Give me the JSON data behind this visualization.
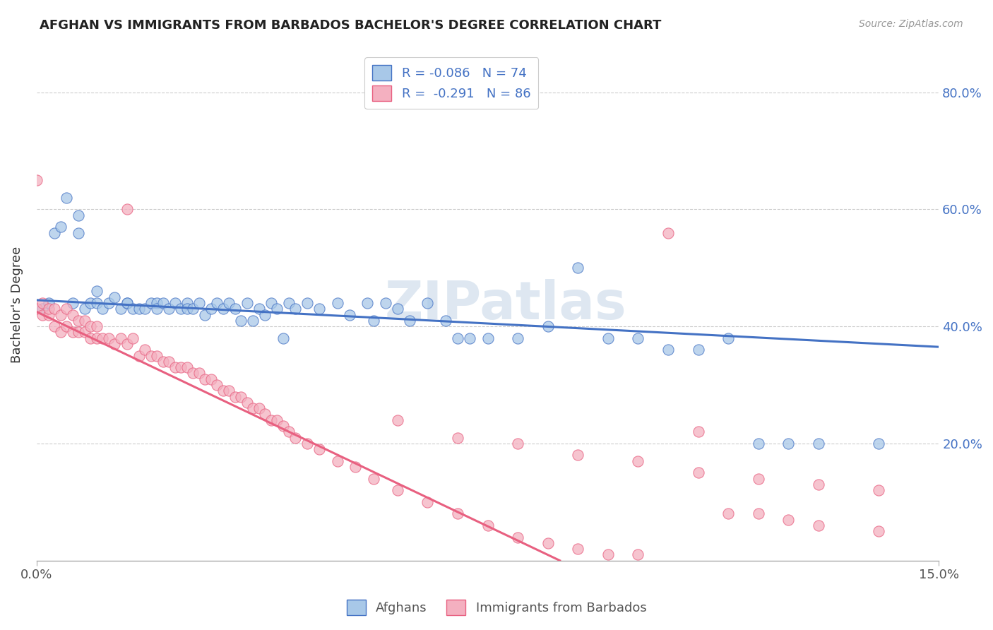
{
  "title": "AFGHAN VS IMMIGRANTS FROM BARBADOS BACHELOR'S DEGREE CORRELATION CHART",
  "source": "Source: ZipAtlas.com",
  "ylabel": "Bachelor's Degree",
  "watermark": "ZIPatlas",
  "afghan_color": "#a8c8e8",
  "barbados_color": "#f4b0c0",
  "afghan_line_color": "#4472c4",
  "barbados_line_color": "#e86080",
  "afghan_scatter_x": [
    0.001,
    0.002,
    0.003,
    0.004,
    0.005,
    0.006,
    0.007,
    0.007,
    0.008,
    0.009,
    0.01,
    0.01,
    0.011,
    0.012,
    0.013,
    0.014,
    0.015,
    0.015,
    0.016,
    0.017,
    0.018,
    0.019,
    0.02,
    0.02,
    0.021,
    0.022,
    0.023,
    0.024,
    0.025,
    0.025,
    0.026,
    0.027,
    0.028,
    0.029,
    0.03,
    0.031,
    0.032,
    0.033,
    0.034,
    0.035,
    0.036,
    0.037,
    0.038,
    0.039,
    0.04,
    0.041,
    0.042,
    0.043,
    0.045,
    0.047,
    0.05,
    0.052,
    0.055,
    0.056,
    0.058,
    0.06,
    0.062,
    0.065,
    0.068,
    0.07,
    0.072,
    0.075,
    0.08,
    0.085,
    0.09,
    0.095,
    0.1,
    0.105,
    0.11,
    0.115,
    0.12,
    0.125,
    0.13,
    0.14
  ],
  "afghan_scatter_y": [
    0.43,
    0.44,
    0.56,
    0.57,
    0.62,
    0.44,
    0.56,
    0.59,
    0.43,
    0.44,
    0.44,
    0.46,
    0.43,
    0.44,
    0.45,
    0.43,
    0.44,
    0.44,
    0.43,
    0.43,
    0.43,
    0.44,
    0.44,
    0.43,
    0.44,
    0.43,
    0.44,
    0.43,
    0.44,
    0.43,
    0.43,
    0.44,
    0.42,
    0.43,
    0.44,
    0.43,
    0.44,
    0.43,
    0.41,
    0.44,
    0.41,
    0.43,
    0.42,
    0.44,
    0.43,
    0.38,
    0.44,
    0.43,
    0.44,
    0.43,
    0.44,
    0.42,
    0.44,
    0.41,
    0.44,
    0.43,
    0.41,
    0.44,
    0.41,
    0.38,
    0.38,
    0.38,
    0.38,
    0.4,
    0.5,
    0.38,
    0.38,
    0.36,
    0.36,
    0.38,
    0.2,
    0.2,
    0.2,
    0.2
  ],
  "barbados_scatter_x": [
    0.0,
    0.0,
    0.001,
    0.001,
    0.002,
    0.002,
    0.003,
    0.003,
    0.004,
    0.004,
    0.005,
    0.005,
    0.006,
    0.006,
    0.007,
    0.007,
    0.008,
    0.008,
    0.009,
    0.009,
    0.01,
    0.01,
    0.011,
    0.012,
    0.013,
    0.014,
    0.015,
    0.016,
    0.017,
    0.018,
    0.019,
    0.02,
    0.021,
    0.022,
    0.023,
    0.024,
    0.025,
    0.026,
    0.027,
    0.028,
    0.029,
    0.03,
    0.031,
    0.032,
    0.033,
    0.034,
    0.035,
    0.036,
    0.037,
    0.038,
    0.039,
    0.04,
    0.041,
    0.042,
    0.043,
    0.045,
    0.047,
    0.05,
    0.053,
    0.056,
    0.06,
    0.065,
    0.07,
    0.075,
    0.08,
    0.085,
    0.09,
    0.095,
    0.1,
    0.105,
    0.11,
    0.115,
    0.12,
    0.125,
    0.13,
    0.14,
    0.015,
    0.06,
    0.07,
    0.08,
    0.09,
    0.1,
    0.11,
    0.12,
    0.13,
    0.14
  ],
  "barbados_scatter_y": [
    0.43,
    0.65,
    0.42,
    0.44,
    0.42,
    0.43,
    0.4,
    0.43,
    0.39,
    0.42,
    0.4,
    0.43,
    0.39,
    0.42,
    0.39,
    0.41,
    0.39,
    0.41,
    0.38,
    0.4,
    0.38,
    0.4,
    0.38,
    0.38,
    0.37,
    0.38,
    0.37,
    0.38,
    0.35,
    0.36,
    0.35,
    0.35,
    0.34,
    0.34,
    0.33,
    0.33,
    0.33,
    0.32,
    0.32,
    0.31,
    0.31,
    0.3,
    0.29,
    0.29,
    0.28,
    0.28,
    0.27,
    0.26,
    0.26,
    0.25,
    0.24,
    0.24,
    0.23,
    0.22,
    0.21,
    0.2,
    0.19,
    0.17,
    0.16,
    0.14,
    0.12,
    0.1,
    0.08,
    0.06,
    0.04,
    0.03,
    0.02,
    0.01,
    0.01,
    0.56,
    0.22,
    0.08,
    0.08,
    0.07,
    0.06,
    0.05,
    0.6,
    0.24,
    0.21,
    0.2,
    0.18,
    0.17,
    0.15,
    0.14,
    0.13,
    0.12
  ],
  "xlim": [
    0.0,
    0.15
  ],
  "ylim": [
    0.0,
    0.875
  ],
  "yticks": [
    0.2,
    0.4,
    0.6,
    0.8
  ],
  "ytick_labels": [
    "20.0%",
    "40.0%",
    "60.0%",
    "80.0%"
  ],
  "xtick_labels": [
    "0.0%",
    "15.0%"
  ],
  "afghan_trend_x": [
    0.0,
    0.15
  ],
  "afghan_trend_y": [
    0.445,
    0.365
  ],
  "barbados_trend_x": [
    0.0,
    0.087
  ],
  "barbados_trend_y": [
    0.425,
    0.0
  ]
}
